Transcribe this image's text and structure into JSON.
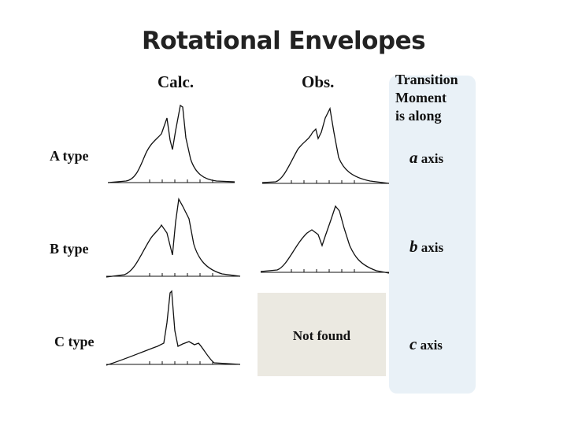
{
  "title": "Rotational Envelopes",
  "columns": {
    "calc": "Calc.",
    "obs": "Obs."
  },
  "transition_header": [
    "Transition",
    "Moment",
    "is along"
  ],
  "rows": [
    {
      "label": "A type",
      "axis_letter": "a",
      "axis_word": "axis"
    },
    {
      "label": "B type",
      "axis_letter": "b",
      "axis_word": "axis"
    },
    {
      "label": "C type",
      "axis_letter": "c",
      "axis_word": "axis"
    }
  ],
  "not_found": "Not found",
  "colors": {
    "panel": "#e9f1f7",
    "not_found_box": "#ebe9e1",
    "line": "#111111"
  }
}
